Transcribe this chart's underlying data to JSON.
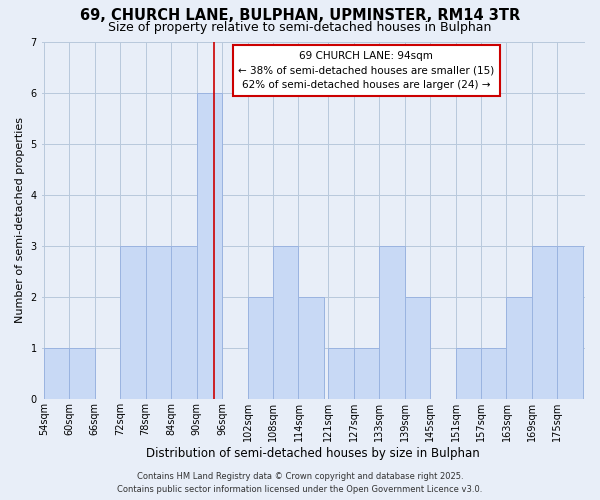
{
  "title1": "69, CHURCH LANE, BULPHAN, UPMINSTER, RM14 3TR",
  "title2": "Size of property relative to semi-detached houses in Bulphan",
  "xlabel": "Distribution of semi-detached houses by size in Bulphan",
  "ylabel": "Number of semi-detached properties",
  "bin_labels": [
    "54sqm",
    "60sqm",
    "66sqm",
    "72sqm",
    "78sqm",
    "84sqm",
    "90sqm",
    "96sqm",
    "102sqm",
    "108sqm",
    "114sqm",
    "121sqm",
    "127sqm",
    "133sqm",
    "139sqm",
    "145sqm",
    "151sqm",
    "157sqm",
    "163sqm",
    "169sqm",
    "175sqm"
  ],
  "bin_left_edges": [
    54,
    60,
    66,
    72,
    78,
    84,
    90,
    96,
    102,
    108,
    114,
    121,
    127,
    133,
    139,
    145,
    151,
    157,
    163,
    169,
    175
  ],
  "bin_widths": [
    6,
    6,
    6,
    6,
    6,
    6,
    6,
    6,
    6,
    6,
    6,
    6,
    6,
    6,
    6,
    6,
    6,
    6,
    6,
    6,
    6
  ],
  "bar_heights": [
    1,
    1,
    0,
    3,
    3,
    3,
    6,
    0,
    2,
    3,
    2,
    1,
    1,
    3,
    2,
    0,
    1,
    1,
    2,
    3,
    3
  ],
  "bar_color": "#c8d9f5",
  "bar_edgecolor": "#9ab4e0",
  "grid_color": "#b8c8dc",
  "property_value": 94,
  "vline_color": "#cc0000",
  "annotation_title": "69 CHURCH LANE: 94sqm",
  "annotation_line1": "← 38% of semi-detached houses are smaller (15)",
  "annotation_line2": "62% of semi-detached houses are larger (24) →",
  "annotation_box_facecolor": "#ffffff",
  "annotation_box_edgecolor": "#cc0000",
  "ylim_max": 7,
  "yticks": [
    0,
    1,
    2,
    3,
    4,
    5,
    6,
    7
  ],
  "footnote1": "Contains HM Land Registry data © Crown copyright and database right 2025.",
  "footnote2": "Contains public sector information licensed under the Open Government Licence v3.0.",
  "background_color": "#e8eef8",
  "title1_fontsize": 10.5,
  "title2_fontsize": 9,
  "xlabel_fontsize": 8.5,
  "ylabel_fontsize": 8,
  "tick_fontsize": 7,
  "annot_fontsize": 7.5,
  "footnote_fontsize": 6
}
